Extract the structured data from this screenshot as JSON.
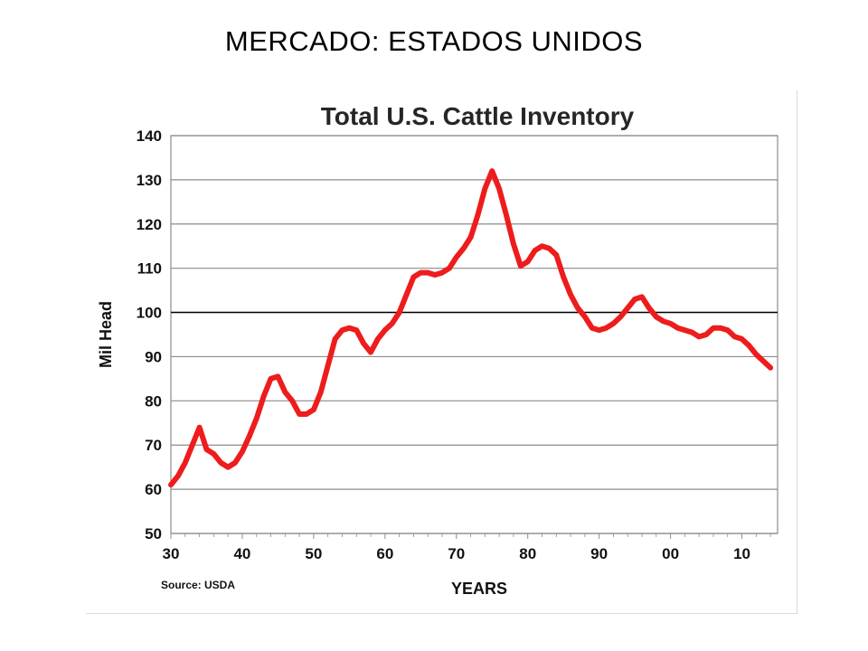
{
  "slide": {
    "title": "MERCADO: ESTADOS UNIDOS"
  },
  "colors": {
    "series": "#ee1c1c",
    "grid": "#8c8c8c",
    "reference_line": "#000000"
  },
  "chart_data": {
    "type": "line",
    "title": "Total U.S. Cattle Inventory",
    "xlabel": "YEARS",
    "ylabel": "Mil Head",
    "source": "Source: USDA",
    "xlim": [
      1930,
      2015
    ],
    "ylim": [
      50,
      140
    ],
    "yticks": [
      50,
      60,
      70,
      80,
      90,
      100,
      110,
      120,
      130,
      140
    ],
    "xticks": [
      {
        "year": 1930,
        "label": "30"
      },
      {
        "year": 1940,
        "label": "40"
      },
      {
        "year": 1950,
        "label": "50"
      },
      {
        "year": 1960,
        "label": "60"
      },
      {
        "year": 1970,
        "label": "70"
      },
      {
        "year": 1980,
        "label": "80"
      },
      {
        "year": 1990,
        "label": "90"
      },
      {
        "year": 2000,
        "label": "00"
      },
      {
        "year": 2010,
        "label": "10"
      }
    ],
    "reference_line": 100,
    "grid": true,
    "series": [
      {
        "x": [
          1930,
          1931,
          1932,
          1933,
          1934,
          1935,
          1936,
          1937,
          1938,
          1939,
          1940,
          1941,
          1942,
          1943,
          1944,
          1945,
          1946,
          1947,
          1948,
          1949,
          1950,
          1951,
          1952,
          1953,
          1954,
          1955,
          1956,
          1957,
          1958,
          1959,
          1960,
          1961,
          1962,
          1963,
          1964,
          1965,
          1966,
          1967,
          1968,
          1969,
          1970,
          1971,
          1972,
          1973,
          1974,
          1975,
          1976,
          1977,
          1978,
          1979,
          1980,
          1981,
          1982,
          1983,
          1984,
          1985,
          1986,
          1987,
          1988,
          1989,
          1990,
          1991,
          1992,
          1993,
          1994,
          1995,
          1996,
          1997,
          1998,
          1999,
          2000,
          2001,
          2002,
          2003,
          2004,
          2005,
          2006,
          2007,
          2008,
          2009,
          2010,
          2011,
          2012,
          2013,
          2014
        ],
        "values": [
          61,
          63,
          66,
          70,
          74,
          69,
          68,
          66,
          65,
          66,
          68.5,
          72,
          76,
          81,
          85,
          85.5,
          82,
          80,
          77,
          77,
          78,
          82,
          88,
          94,
          96,
          96.5,
          96,
          93,
          91,
          94,
          96,
          97.5,
          100,
          104,
          108,
          109,
          109,
          108.5,
          109,
          110,
          112.5,
          114.5,
          117,
          122,
          128,
          132,
          128,
          122,
          115.5,
          110.5,
          111.5,
          114,
          115,
          114.5,
          113,
          108,
          104,
          101,
          99,
          96.5,
          96,
          96.5,
          97.5,
          99,
          101,
          103,
          103.5,
          101,
          99,
          98,
          97.5,
          96.5,
          96,
          95.5,
          94.5,
          95,
          96.5,
          96.5,
          96,
          94.5,
          94,
          92.5,
          90.5,
          89,
          87.5
        ]
      }
    ]
  }
}
